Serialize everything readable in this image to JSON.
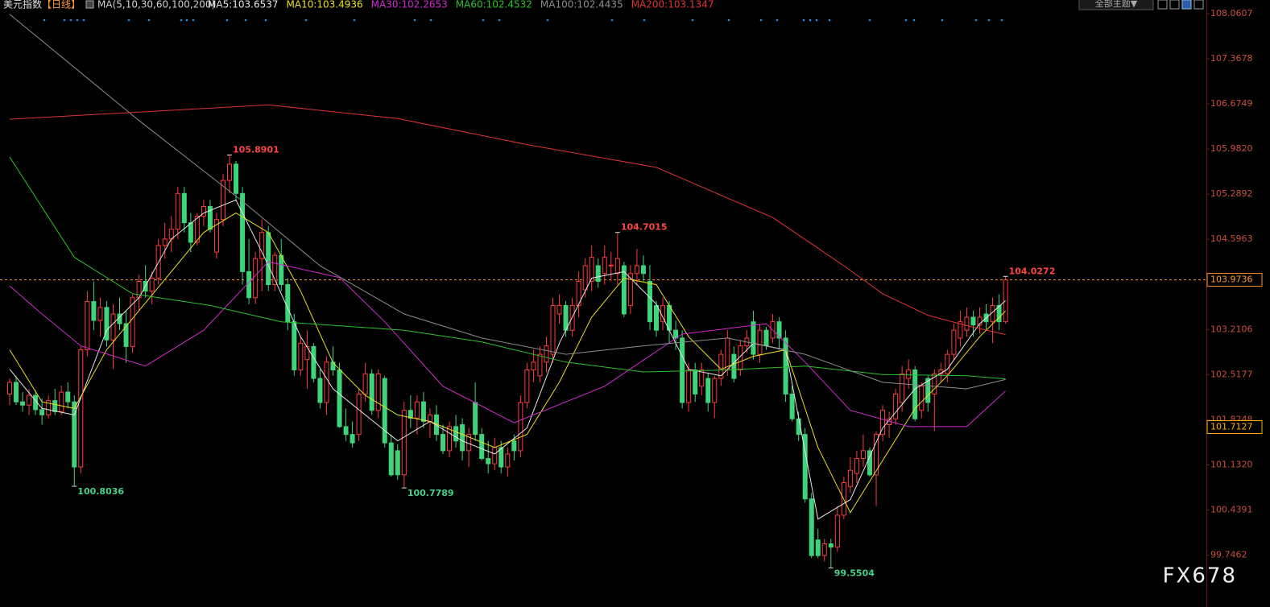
{
  "header": {
    "instrument": "美元指数",
    "period": "【日线】",
    "ma_params": "MA(5,10,30,60,100,200)",
    "theme_button": "全部主题▼",
    "watermark": "FX678"
  },
  "chart_data": {
    "type": "candlestick",
    "up_color": "#ff3b3b",
    "down_color": "#3ed47a",
    "ylim": [
      99.0,
      108.27
    ],
    "yticks": [
      108.0607,
      107.3678,
      106.6749,
      {
        "value": 105.982,
        "label": "105.9820"
      },
      105.2892,
      104.5963,
      103.2106,
      102.5177,
      101.8248,
      {
        "value": 101.132,
        "label": "101.1320"
      },
      100.4391,
      99.7462
    ],
    "price_labels": [
      {
        "value": 103.9736,
        "color": "#ff9a2e",
        "line": true
      },
      {
        "value": 101.7127,
        "color": "#ffb000",
        "line": false
      }
    ],
    "ohlc": [
      [
        102.22,
        102.46,
        102.05,
        102.4
      ],
      [
        102.4,
        102.5,
        102.05,
        102.1
      ],
      [
        102.1,
        102.25,
        101.95,
        102.05
      ],
      [
        102.05,
        102.3,
        101.9,
        102.2
      ],
      [
        102.2,
        102.28,
        101.9,
        101.98
      ],
      [
        101.98,
        102.15,
        101.75,
        101.9
      ],
      [
        101.9,
        102.2,
        101.85,
        102.12
      ],
      [
        102.12,
        102.3,
        101.9,
        101.95
      ],
      [
        101.95,
        102.35,
        101.9,
        102.25
      ],
      [
        102.25,
        102.4,
        102.0,
        102.1
      ],
      [
        102.1,
        102.2,
        100.8036,
        101.1
      ],
      [
        101.1,
        102.96,
        101.0,
        102.9
      ],
      [
        102.9,
        103.8,
        102.8,
        103.64
      ],
      [
        103.64,
        103.95,
        103.2,
        103.35
      ],
      [
        103.35,
        103.7,
        103.1,
        103.55
      ],
      [
        103.55,
        103.65,
        102.95,
        103.05
      ],
      [
        103.05,
        103.6,
        102.6,
        103.45
      ],
      [
        103.45,
        103.7,
        103.2,
        103.3
      ],
      [
        103.3,
        103.5,
        102.7,
        102.95
      ],
      [
        102.95,
        103.75,
        102.85,
        103.7
      ],
      [
        103.7,
        104.05,
        103.5,
        103.95
      ],
      [
        103.95,
        104.2,
        103.7,
        103.8
      ],
      [
        103.8,
        104.1,
        103.6,
        104.0
      ],
      [
        104.0,
        104.6,
        103.9,
        104.5
      ],
      [
        104.5,
        104.85,
        104.3,
        104.6
      ],
      [
        104.6,
        104.95,
        104.4,
        104.75
      ],
      [
        104.75,
        105.4,
        104.6,
        105.3
      ],
      [
        105.3,
        105.4,
        104.7,
        104.85
      ],
      [
        104.85,
        105.0,
        104.4,
        104.55
      ],
      [
        104.55,
        105.0,
        104.5,
        104.95
      ],
      [
        104.95,
        105.2,
        104.8,
        105.1
      ],
      [
        105.1,
        105.2,
        104.7,
        104.75
      ],
      [
        104.4,
        105.0,
        104.3,
        104.9
      ],
      [
        104.9,
        105.6,
        104.8,
        105.5
      ],
      [
        105.5,
        105.8901,
        105.3,
        105.75
      ],
      [
        105.75,
        105.8,
        105.2,
        105.3
      ],
      [
        105.3,
        105.4,
        103.9,
        104.1
      ],
      [
        104.1,
        104.6,
        103.6,
        103.7
      ],
      [
        103.7,
        104.4,
        103.6,
        104.3
      ],
      [
        104.3,
        104.9,
        103.8,
        104.7
      ],
      [
        104.7,
        104.8,
        103.8,
        103.9
      ],
      [
        103.9,
        104.4,
        103.8,
        104.35
      ],
      [
        104.35,
        104.6,
        103.8,
        103.9
      ],
      [
        103.9,
        104.0,
        103.2,
        103.33
      ],
      [
        103.33,
        103.45,
        102.5,
        102.59
      ],
      [
        102.59,
        103.1,
        102.5,
        103.0
      ],
      [
        102.75,
        103.2,
        102.3,
        102.95
      ],
      [
        102.95,
        103.0,
        102.4,
        102.46
      ],
      [
        102.46,
        102.6,
        102.0,
        102.09
      ],
      [
        102.09,
        102.8,
        101.9,
        102.71
      ],
      [
        102.71,
        102.95,
        102.5,
        102.59
      ],
      [
        102.59,
        102.7,
        101.7,
        101.72
      ],
      [
        101.72,
        102.0,
        101.5,
        101.6
      ],
      [
        101.6,
        101.8,
        101.4,
        101.47
      ],
      [
        101.6,
        102.3,
        101.5,
        102.22
      ],
      [
        102.22,
        102.7,
        102.1,
        102.53
      ],
      [
        102.53,
        102.6,
        101.9,
        101.97
      ],
      [
        101.97,
        102.6,
        101.85,
        102.53
      ],
      [
        102.46,
        102.5,
        101.4,
        101.47
      ],
      [
        101.47,
        101.6,
        100.95,
        100.98
      ],
      [
        101.35,
        101.45,
        100.9,
        100.98
      ],
      [
        100.98,
        102.1,
        100.7789,
        101.97
      ],
      [
        101.97,
        102.2,
        101.7,
        101.85
      ],
      [
        101.85,
        102.2,
        101.6,
        102.1
      ],
      [
        102.1,
        102.25,
        101.7,
        101.8
      ],
      [
        101.8,
        102.0,
        101.55,
        101.9
      ],
      [
        101.9,
        102.05,
        101.5,
        101.6
      ],
      [
        101.6,
        101.75,
        101.3,
        101.35
      ],
      [
        101.35,
        101.8,
        101.25,
        101.72
      ],
      [
        101.72,
        101.9,
        101.4,
        101.5
      ],
      [
        101.75,
        101.85,
        101.2,
        101.35
      ],
      [
        101.35,
        101.7,
        101.1,
        101.6
      ],
      [
        102.09,
        102.4,
        101.5,
        101.6
      ],
      [
        101.6,
        101.7,
        101.2,
        101.23
      ],
      [
        101.23,
        101.5,
        101.0,
        101.15
      ],
      [
        101.15,
        101.55,
        101.05,
        101.4
      ],
      [
        101.4,
        101.5,
        101.0,
        101.1
      ],
      [
        101.1,
        101.4,
        100.95,
        101.3
      ],
      [
        101.5,
        101.6,
        101.2,
        101.35
      ],
      [
        101.35,
        102.2,
        101.25,
        102.09
      ],
      [
        102.09,
        102.7,
        102.0,
        102.59
      ],
      [
        102.59,
        102.9,
        102.4,
        102.71
      ],
      [
        102.5,
        102.95,
        102.4,
        102.83
      ],
      [
        102.71,
        103.1,
        102.55,
        102.96
      ],
      [
        102.83,
        103.7,
        102.7,
        103.58
      ],
      [
        103.45,
        103.75,
        103.3,
        103.58
      ],
      [
        103.58,
        103.65,
        103.1,
        103.2
      ],
      [
        103.2,
        103.7,
        103.1,
        103.58
      ],
      [
        103.58,
        104.1,
        103.4,
        103.95
      ],
      [
        103.82,
        104.3,
        103.7,
        104.19
      ],
      [
        103.95,
        104.5,
        103.8,
        104.32
      ],
      [
        104.19,
        104.3,
        103.85,
        103.95
      ],
      [
        104.07,
        104.5,
        103.9,
        104.32
      ],
      [
        104.19,
        104.4,
        103.95,
        104.2
      ],
      [
        104.07,
        104.7015,
        103.9,
        104.3
      ],
      [
        104.19,
        104.25,
        103.4,
        103.45
      ],
      [
        103.58,
        104.2,
        103.45,
        104.07
      ],
      [
        104.07,
        104.45,
        103.9,
        104.19
      ],
      [
        104.19,
        104.35,
        103.95,
        104.07
      ],
      [
        103.95,
        104.2,
        103.2,
        103.33
      ],
      [
        103.58,
        103.65,
        103.1,
        103.2
      ],
      [
        103.33,
        103.7,
        103.2,
        103.58
      ],
      [
        103.58,
        103.65,
        103.0,
        103.2
      ],
      [
        103.2,
        103.35,
        102.9,
        103.08
      ],
      [
        103.08,
        103.2,
        102.0,
        102.09
      ],
      [
        102.09,
        102.7,
        101.95,
        102.59
      ],
      [
        102.59,
        102.7,
        102.1,
        102.22
      ],
      [
        102.34,
        102.7,
        102.2,
        102.59
      ],
      [
        102.46,
        102.55,
        101.95,
        102.09
      ],
      [
        102.09,
        102.5,
        101.85,
        102.46
      ],
      [
        102.46,
        102.9,
        102.35,
        102.83
      ],
      [
        102.59,
        103.2,
        102.5,
        103.08
      ],
      [
        102.83,
        102.95,
        102.4,
        102.46
      ],
      [
        102.59,
        103.05,
        102.5,
        102.96
      ],
      [
        102.96,
        103.2,
        102.85,
        103.08
      ],
      [
        103.33,
        103.5,
        102.75,
        102.83
      ],
      [
        102.83,
        103.3,
        102.7,
        103.2
      ],
      [
        103.2,
        103.25,
        102.9,
        102.96
      ],
      [
        103.08,
        103.45,
        103.0,
        103.33
      ],
      [
        103.33,
        103.4,
        102.9,
        103.08
      ],
      [
        103.08,
        103.2,
        102.1,
        102.22
      ],
      [
        102.22,
        102.35,
        101.8,
        101.84
      ],
      [
        101.84,
        101.95,
        101.5,
        101.6
      ],
      [
        101.6,
        101.7,
        100.55,
        100.61
      ],
      [
        100.61,
        100.7,
        99.7,
        99.74
      ],
      [
        99.98,
        100.15,
        99.7,
        99.74
      ],
      [
        99.74,
        100.0,
        99.65,
        99.92
      ],
      [
        99.92,
        100.0,
        99.5504,
        99.87
      ],
      [
        99.87,
        100.5,
        99.8,
        100.36
      ],
      [
        100.36,
        100.95,
        100.3,
        100.86
      ],
      [
        100.8,
        101.25,
        100.7,
        101.05
      ],
      [
        101.0,
        101.35,
        100.85,
        101.23
      ],
      [
        101.23,
        101.6,
        101.1,
        101.35
      ],
      [
        101.35,
        101.4,
        100.95,
        100.98
      ],
      [
        100.98,
        101.65,
        100.5,
        101.6
      ],
      [
        101.6,
        102.05,
        101.5,
        101.97
      ],
      [
        101.75,
        101.95,
        101.55,
        101.84
      ],
      [
        101.84,
        102.3,
        101.75,
        102.22
      ],
      [
        102.09,
        102.65,
        101.95,
        102.53
      ],
      [
        102.46,
        102.75,
        102.3,
        102.59
      ],
      [
        102.59,
        102.65,
        101.8,
        101.84
      ],
      [
        101.97,
        102.4,
        101.85,
        102.34
      ],
      [
        102.46,
        102.5,
        101.95,
        102.09
      ],
      [
        102.22,
        102.6,
        101.65,
        102.53
      ],
      [
        102.53,
        102.7,
        102.4,
        102.59
      ],
      [
        102.53,
        102.9,
        102.4,
        102.83
      ],
      [
        102.83,
        103.3,
        102.75,
        103.2
      ],
      [
        103.08,
        103.5,
        102.95,
        103.33
      ],
      [
        103.2,
        103.55,
        103.1,
        103.4
      ],
      [
        103.4,
        103.5,
        103.1,
        103.28
      ],
      [
        103.28,
        103.55,
        103.15,
        103.4
      ],
      [
        103.45,
        103.6,
        103.2,
        103.33
      ],
      [
        103.33,
        103.7,
        103.0,
        103.58
      ],
      [
        103.58,
        103.75,
        103.2,
        103.33
      ],
      [
        103.33,
        104.0272,
        103.3,
        103.9736
      ]
    ],
    "series": [
      {
        "name": "MA5:103.6537",
        "color": "#e6e6e6",
        "x": [
          0,
          5,
          10,
          15,
          20,
          25,
          30,
          35,
          40,
          45,
          50,
          55,
          60,
          65,
          70,
          75,
          80,
          85,
          90,
          95,
          100,
          105,
          110,
          115,
          120,
          125,
          130,
          135,
          140,
          145,
          150,
          154
        ],
        "values": [
          102.6,
          102.0,
          101.9,
          103.2,
          103.7,
          104.6,
          105.0,
          105.2,
          104.2,
          103.1,
          102.3,
          101.9,
          101.5,
          101.8,
          101.5,
          101.3,
          101.7,
          103.0,
          104.0,
          104.1,
          103.6,
          102.6,
          102.5,
          103.0,
          102.9,
          100.3,
          100.6,
          101.7,
          102.3,
          102.6,
          103.3,
          103.6537
        ]
      },
      {
        "name": "MA10:103.4936",
        "color": "#e8e020",
        "x": [
          0,
          5,
          10,
          15,
          20,
          25,
          30,
          35,
          40,
          45,
          50,
          55,
          60,
          65,
          70,
          75,
          80,
          85,
          90,
          95,
          100,
          105,
          110,
          115,
          120,
          125,
          130,
          135,
          140,
          145,
          150,
          154
        ],
        "values": [
          102.9,
          102.1,
          102.0,
          102.9,
          103.5,
          104.1,
          104.7,
          105.0,
          104.7,
          103.8,
          102.7,
          102.2,
          101.9,
          101.8,
          101.6,
          101.4,
          101.6,
          102.4,
          103.4,
          104.0,
          103.9,
          103.1,
          102.6,
          102.8,
          102.9,
          101.4,
          100.4,
          101.2,
          102.0,
          102.5,
          103.1,
          103.4936
        ]
      },
      {
        "name": "MA30:102.2653",
        "color": "#d22ad2",
        "x": [
          0,
          5,
          11,
          21,
          30,
          40,
          51,
          58,
          67,
          78,
          92,
          104,
          117,
          123,
          130,
          139,
          148,
          154
        ],
        "values": [
          103.88,
          103.45,
          102.96,
          102.65,
          103.2,
          104.25,
          104.01,
          103.33,
          102.34,
          101.78,
          102.34,
          103.14,
          103.3,
          102.71,
          101.97,
          101.72,
          101.72,
          102.2653
        ]
      },
      {
        "name": "MA60:102.4532",
        "color": "#2cc22c",
        "x": [
          0,
          10,
          19,
          31,
          42,
          61,
          73,
          86,
          98,
          111,
          123,
          135,
          148,
          154
        ],
        "values": [
          105.86,
          104.32,
          103.76,
          103.58,
          103.33,
          103.2,
          103.02,
          102.71,
          102.56,
          102.59,
          102.65,
          102.52,
          102.5,
          102.4532
        ]
      },
      {
        "name": "MA100:102.4435",
        "color": "#8c8c8c",
        "x": [
          0,
          20,
          36,
          48,
          61,
          73,
          86,
          98,
          111,
          123,
          135,
          148,
          154
        ],
        "values": [
          108.05,
          106.42,
          105.18,
          104.19,
          103.45,
          103.08,
          102.83,
          102.96,
          103.08,
          102.83,
          102.4,
          102.3,
          102.4435
        ]
      },
      {
        "name": "MA200:103.1347",
        "color": "#e23232",
        "x": [
          0,
          20,
          40,
          60,
          80,
          100,
          118,
          129,
          135,
          142,
          148,
          154
        ],
        "values": [
          106.44,
          106.55,
          106.66,
          106.45,
          106.05,
          105.7,
          104.93,
          104.19,
          103.76,
          103.43,
          103.27,
          103.1347
        ]
      }
    ],
    "annotations": [
      {
        "x": 34,
        "y": 105.8901,
        "color": "#ff4444",
        "side": "above"
      },
      {
        "x": 94,
        "y": 104.7015,
        "color": "#ff4444",
        "side": "above"
      },
      {
        "x": 154,
        "y": 104.0272,
        "color": "#ff4444",
        "side": "above"
      },
      {
        "x": 10,
        "y": 100.8036,
        "color": "#46d28a",
        "side": "below"
      },
      {
        "x": 61,
        "y": 100.7789,
        "color": "#46d28a",
        "side": "below"
      },
      {
        "x": 127,
        "y": 99.5504,
        "color": "#46d28a",
        "side": "below"
      }
    ]
  }
}
